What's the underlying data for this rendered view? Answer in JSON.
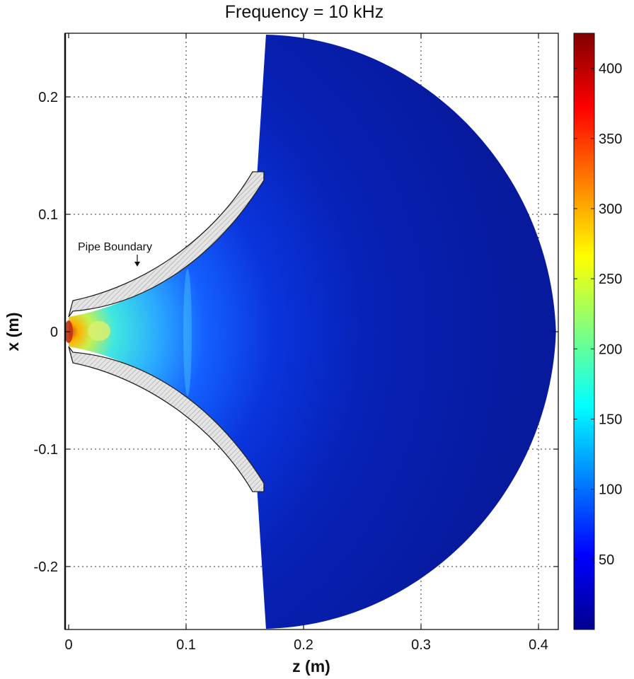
{
  "chart_data": {
    "type": "heatmap",
    "title": "Frequency = 10 kHz",
    "xlabel": "z (m)",
    "ylabel": "x (m)",
    "xlim": [
      0,
      0.415
    ],
    "ylim": [
      -0.253,
      0.253
    ],
    "x_ticks": [
      0,
      0.1,
      0.2,
      0.3,
      0.4
    ],
    "x_tick_labels": [
      "0",
      "0.1",
      "0.2",
      "0.3",
      "0.4"
    ],
    "y_ticks": [
      0.2,
      0.1,
      0,
      -0.1,
      -0.2
    ],
    "y_tick_labels": [
      "0.2",
      "0.1",
      "0",
      "-0.1",
      "-0.2"
    ],
    "grid": true,
    "colorbar": {
      "range": [
        0,
        425
      ],
      "ticks": [
        400,
        350,
        300,
        250,
        200,
        150,
        100,
        50
      ],
      "tick_labels": [
        "400",
        "350",
        "300",
        "250",
        "200",
        "150",
        "100",
        "50"
      ],
      "colormap": "jet"
    },
    "domain_region": {
      "pipe_outlet_z": 0.165,
      "pipe_outlet_half_width": 0.135,
      "radiation_arc_max_z": 0.41,
      "radiation_arc_max_x": 0.253
    },
    "field_features": [
      {
        "z": 0.0,
        "x": 0.0,
        "value": 400
      },
      {
        "z": 0.027,
        "x": 0.0,
        "value": 230
      },
      {
        "z": 0.1,
        "x": 0.0,
        "value": 150
      },
      {
        "z": 0.2,
        "x": 0.0,
        "value": 60
      },
      {
        "z": 0.35,
        "x": 0.0,
        "value": 20
      }
    ],
    "annotations": [
      {
        "text": "Pipe Boundary"
      }
    ]
  },
  "colors": {
    "background": "#ffffff",
    "field_low": "#00008f",
    "field_high": "#800000",
    "wall_fill": "#e4e4e4"
  }
}
